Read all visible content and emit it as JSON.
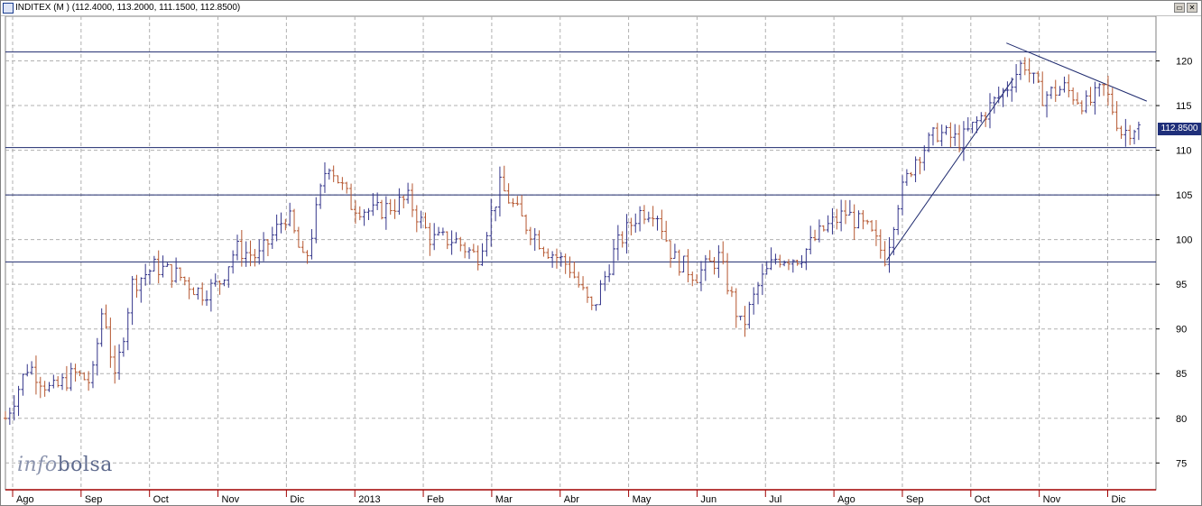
{
  "window": {
    "title": "INDITEX (M ) (112.4000, 113.2000, 111.1500, 112.8500)",
    "watermark_prefix": "info",
    "watermark_suffix": "bolsa"
  },
  "price_tag": "112.8500",
  "colors": {
    "up": "#33348a",
    "down": "#b5562f",
    "lines": "#1e2a6e",
    "grid": "#b0b0b0",
    "axis_red": "#a00000"
  },
  "chart_data": {
    "type": "ohlc",
    "title": "INDITEX (M ) (112.4000, 113.2000, 111.1500, 112.8500)",
    "ylim": [
      72,
      125
    ],
    "yticks": [
      75,
      80,
      85,
      90,
      95,
      100,
      105,
      110,
      115,
      120
    ],
    "months": [
      "Ago",
      "Sep",
      "Oct",
      "Nov",
      "Dic",
      "2013",
      "Feb",
      "Mar",
      "Abr",
      "May",
      "Jun",
      "Jul",
      "Ago",
      "Sep",
      "Oct",
      "Nov",
      "Dic"
    ],
    "horizontal_levels": [
      121,
      110.3,
      105,
      97.5
    ],
    "trendlines": [
      {
        "from": [
          0.766,
          97.7
        ],
        "to": [
          0.876,
          118
        ]
      },
      {
        "from": [
          0.87,
          122
        ],
        "to": [
          0.992,
          115.5
        ]
      }
    ],
    "anchor_closes": [
      [
        0.0,
        80
      ],
      [
        0.02,
        86
      ],
      [
        0.04,
        83
      ],
      [
        0.06,
        85
      ],
      [
        0.075,
        84
      ],
      [
        0.085,
        93
      ],
      [
        0.095,
        84
      ],
      [
        0.11,
        95
      ],
      [
        0.13,
        97
      ],
      [
        0.15,
        96
      ],
      [
        0.17,
        94
      ],
      [
        0.185,
        95
      ],
      [
        0.2,
        99
      ],
      [
        0.22,
        98
      ],
      [
        0.245,
        103
      ],
      [
        0.26,
        97
      ],
      [
        0.28,
        109
      ],
      [
        0.3,
        104
      ],
      [
        0.32,
        103
      ],
      [
        0.35,
        104.5
      ],
      [
        0.37,
        100
      ],
      [
        0.39,
        100
      ],
      [
        0.41,
        98
      ],
      [
        0.43,
        106
      ],
      [
        0.45,
        102
      ],
      [
        0.47,
        99
      ],
      [
        0.49,
        97
      ],
      [
        0.51,
        92
      ],
      [
        0.53,
        99
      ],
      [
        0.55,
        103
      ],
      [
        0.565,
        103.5
      ],
      [
        0.58,
        98
      ],
      [
        0.6,
        96
      ],
      [
        0.62,
        98
      ],
      [
        0.64,
        90
      ],
      [
        0.655,
        95
      ],
      [
        0.67,
        98
      ],
      [
        0.69,
        98
      ],
      [
        0.71,
        101
      ],
      [
        0.73,
        103
      ],
      [
        0.75,
        101
      ],
      [
        0.765,
        98
      ],
      [
        0.775,
        104
      ],
      [
        0.79,
        109
      ],
      [
        0.81,
        112
      ],
      [
        0.83,
        111
      ],
      [
        0.85,
        114
      ],
      [
        0.87,
        117
      ],
      [
        0.885,
        120
      ],
      [
        0.9,
        116
      ],
      [
        0.92,
        117
      ],
      [
        0.94,
        115
      ],
      [
        0.955,
        117
      ],
      [
        0.97,
        112
      ],
      [
        0.985,
        112.85
      ]
    ],
    "last_bar": {
      "open": 112.4,
      "high": 113.2,
      "low": 111.15,
      "close": 112.85
    }
  }
}
